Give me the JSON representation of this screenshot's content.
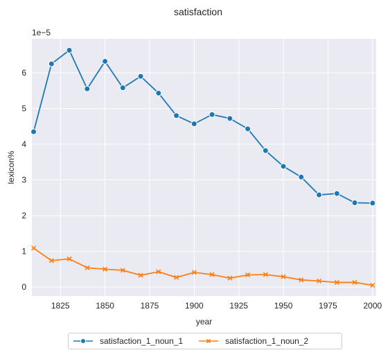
{
  "chart_data": {
    "type": "line",
    "title": "satisfaction",
    "xlabel": "year",
    "ylabel": "lexicon%",
    "y_scale_label": "1e−5",
    "xlim": [
      1809,
      2002
    ],
    "ylim": [
      -0.25,
      6.95
    ],
    "grid": true,
    "legend_placement": "bottom-center",
    "x_ticks": [
      1825,
      1850,
      1875,
      1900,
      1925,
      1950,
      1975,
      2000
    ],
    "y_ticks": [
      0,
      1,
      2,
      3,
      4,
      5,
      6
    ],
    "x": [
      1810,
      1820,
      1830,
      1840,
      1850,
      1860,
      1870,
      1880,
      1890,
      1900,
      1910,
      1920,
      1930,
      1940,
      1950,
      1960,
      1970,
      1980,
      1990,
      2000
    ],
    "series": [
      {
        "name": "satisfaction_1_noun_1",
        "color": "#1f77b4",
        "marker": "circle",
        "values": [
          4.35,
          6.25,
          6.63,
          5.55,
          6.32,
          5.58,
          5.9,
          5.43,
          4.8,
          4.57,
          4.83,
          4.72,
          4.43,
          3.82,
          3.38,
          3.08,
          2.58,
          2.62,
          2.36,
          2.35
        ]
      },
      {
        "name": "satisfaction_1_noun_2",
        "color": "#ff7f0e",
        "marker": "x",
        "values": [
          1.09,
          0.74,
          0.79,
          0.54,
          0.5,
          0.47,
          0.33,
          0.43,
          0.27,
          0.41,
          0.35,
          0.25,
          0.34,
          0.35,
          0.29,
          0.2,
          0.17,
          0.13,
          0.13,
          0.05
        ]
      }
    ]
  },
  "colors": {
    "plot_background": "#eaeaf2",
    "grid": "#ffffff"
  }
}
